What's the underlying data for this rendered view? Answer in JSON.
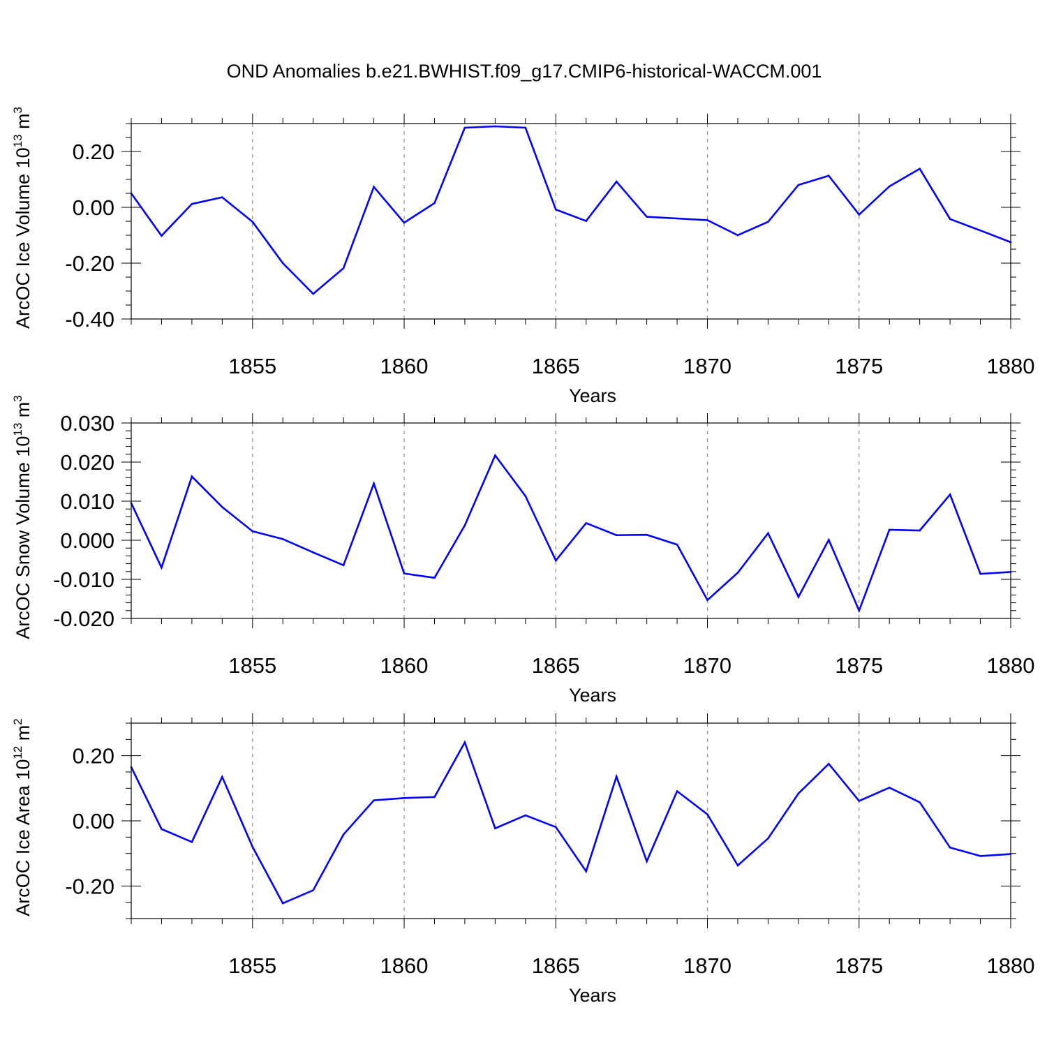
{
  "title": "OND Anomalies b.e21.BWHIST.f09_g17.CMIP6-historical-WACCM.001",
  "colors": {
    "series": "#0000ff",
    "axes": "#000000",
    "grid": "#8c8c8c"
  },
  "chart_data": [
    {
      "type": "line",
      "panel": "ice-volume",
      "ylabel": {
        "base": "ArcOC Ice Volume 10",
        "exp": "13",
        "unit": " m",
        "unit_exp": "3"
      },
      "xlabel": "Years",
      "xlim": [
        1851,
        1880
      ],
      "ylim": [
        -0.4,
        0.3
      ],
      "yticks": [
        -0.4,
        -0.2,
        0.0,
        0.2
      ],
      "ytick_labels": [
        "-0.40",
        "-0.20",
        "0.00",
        "0.20"
      ],
      "yminor": 0.05,
      "xticks": [
        1855,
        1860,
        1865,
        1870,
        1875,
        1880
      ],
      "xtick_labels": [
        "1855",
        "1860",
        "1865",
        "1870",
        "1875",
        "1880"
      ],
      "grid": "dashed vertical at major x ticks",
      "x": [
        1851,
        1852,
        1853,
        1854,
        1855,
        1856,
        1857,
        1858,
        1859,
        1860,
        1861,
        1862,
        1863,
        1864,
        1865,
        1866,
        1867,
        1868,
        1869,
        1870,
        1871,
        1872,
        1873,
        1874,
        1875,
        1876,
        1877,
        1878,
        1879,
        1880
      ],
      "values": [
        0.05,
        -0.102,
        0.012,
        0.036,
        -0.052,
        -0.2,
        -0.31,
        -0.218,
        0.073,
        -0.055,
        0.015,
        0.285,
        0.29,
        0.285,
        -0.008,
        -0.049,
        0.092,
        -0.034,
        -0.04,
        -0.046,
        -0.1,
        -0.052,
        0.08,
        0.113,
        -0.026,
        0.075,
        0.138,
        -0.042,
        -0.083,
        -0.125
      ]
    },
    {
      "type": "line",
      "panel": "snow-volume",
      "ylabel": {
        "base": "ArcOC Snow Volume 10",
        "exp": "13",
        "unit": " m",
        "unit_exp": "3"
      },
      "xlabel": "Years",
      "xlim": [
        1851,
        1880
      ],
      "ylim": [
        -0.02,
        0.03
      ],
      "yticks": [
        -0.02,
        -0.01,
        0.0,
        0.01,
        0.02,
        0.03
      ],
      "ytick_labels": [
        "-0.020",
        "-0.010",
        "0.000",
        "0.010",
        "0.020",
        "0.030"
      ],
      "yminor": 0.002,
      "xticks": [
        1855,
        1860,
        1865,
        1870,
        1875,
        1880
      ],
      "xtick_labels": [
        "1855",
        "1860",
        "1865",
        "1870",
        "1875",
        "1880"
      ],
      "grid": "dashed vertical at major x ticks",
      "x": [
        1851,
        1852,
        1853,
        1854,
        1855,
        1856,
        1857,
        1858,
        1859,
        1860,
        1861,
        1862,
        1863,
        1864,
        1865,
        1866,
        1867,
        1868,
        1869,
        1870,
        1871,
        1872,
        1873,
        1874,
        1875,
        1876,
        1877,
        1878,
        1879,
        1880
      ],
      "values": [
        0.0095,
        -0.007,
        0.0163,
        0.0085,
        0.0023,
        0.0003,
        -0.0031,
        -0.0064,
        0.0145,
        -0.0085,
        -0.0096,
        0.0038,
        0.0217,
        0.0113,
        -0.0052,
        0.0044,
        0.0013,
        0.0014,
        -0.0011,
        -0.0153,
        -0.0083,
        0.0018,
        -0.0145,
        0.0001,
        -0.018,
        0.0027,
        0.0025,
        0.0117,
        -0.0086,
        -0.0081
      ]
    },
    {
      "type": "line",
      "panel": "ice-area",
      "ylabel": {
        "base": "ArcOC Ice Area 10",
        "exp": "12",
        "unit": " m",
        "unit_exp": "2"
      },
      "xlabel": "Years",
      "xlim": [
        1851,
        1880
      ],
      "ylim": [
        -0.3,
        0.3
      ],
      "yticks": [
        -0.2,
        0.0,
        0.2
      ],
      "ytick_labels": [
        "-0.20",
        "0.00",
        "0.20"
      ],
      "yminor": 0.05,
      "xticks": [
        1855,
        1860,
        1865,
        1870,
        1875,
        1880
      ],
      "xtick_labels": [
        "1855",
        "1860",
        "1865",
        "1870",
        "1875",
        "1880"
      ],
      "grid": "dashed vertical at major x ticks",
      "x": [
        1851,
        1852,
        1853,
        1854,
        1855,
        1856,
        1857,
        1858,
        1859,
        1860,
        1861,
        1862,
        1863,
        1864,
        1865,
        1866,
        1867,
        1868,
        1869,
        1870,
        1871,
        1872,
        1873,
        1874,
        1875,
        1876,
        1877,
        1878,
        1879,
        1880
      ],
      "values": [
        0.165,
        -0.025,
        -0.065,
        0.135,
        -0.08,
        -0.253,
        -0.213,
        -0.042,
        0.063,
        0.07,
        0.073,
        0.241,
        -0.023,
        0.017,
        -0.019,
        -0.155,
        0.136,
        -0.124,
        0.091,
        0.02,
        -0.137,
        -0.054,
        0.084,
        0.175,
        0.061,
        0.102,
        0.057,
        -0.082,
        -0.108,
        -0.102
      ]
    }
  ]
}
